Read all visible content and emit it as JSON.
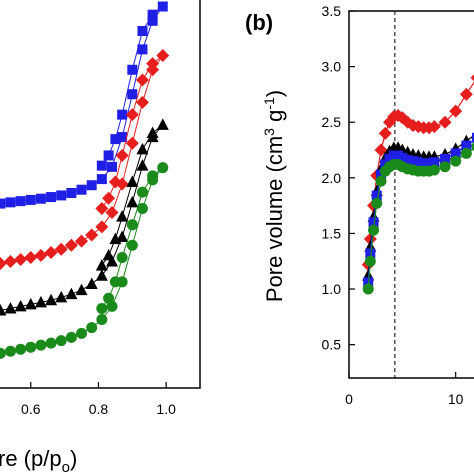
{
  "chart_data": [
    {
      "panel": "a",
      "type": "line",
      "xlabel": "re (p/p",
      "xlabel_sub": "o",
      "xlabel_close": ")",
      "xlim": [
        0.45,
        1.1
      ],
      "x_ticks": [
        "0.6",
        "0.8",
        "1.0"
      ],
      "x_tick_values": [
        0.6,
        0.8,
        1.0
      ],
      "ylim": [
        0,
        1
      ],
      "series": [
        {
          "marker": "square",
          "color": "#1f1fe6",
          "adsorption": [
            [
              0.45,
              0.446
            ],
            [
              0.48,
              0.449
            ],
            [
              0.51,
              0.452
            ],
            [
              0.54,
              0.455
            ],
            [
              0.57,
              0.458
            ],
            [
              0.6,
              0.461
            ],
            [
              0.63,
              0.464
            ],
            [
              0.66,
              0.468
            ],
            [
              0.69,
              0.472
            ],
            [
              0.72,
              0.478
            ],
            [
              0.75,
              0.486
            ],
            [
              0.78,
              0.497
            ],
            [
              0.81,
              0.512
            ],
            [
              0.84,
              0.542
            ],
            [
              0.87,
              0.615
            ],
            [
              0.9,
              0.72
            ],
            [
              0.93,
              0.83
            ],
            [
              0.96,
              0.9
            ],
            [
              0.99,
              0.935
            ]
          ],
          "desorption": [
            [
              0.99,
              0.935
            ],
            [
              0.96,
              0.915
            ],
            [
              0.93,
              0.875
            ],
            [
              0.9,
              0.78
            ],
            [
              0.87,
              0.67
            ],
            [
              0.85,
              0.61
            ],
            [
              0.83,
              0.57
            ],
            [
              0.81,
              0.545
            ]
          ]
        },
        {
          "marker": "diamond",
          "color": "#e61e1e",
          "adsorption": [
            [
              0.45,
              0.295
            ],
            [
              0.48,
              0.3
            ],
            [
              0.51,
              0.305
            ],
            [
              0.54,
              0.31
            ],
            [
              0.57,
              0.315
            ],
            [
              0.6,
              0.32
            ],
            [
              0.63,
              0.325
            ],
            [
              0.66,
              0.332
            ],
            [
              0.69,
              0.34
            ],
            [
              0.72,
              0.35
            ],
            [
              0.75,
              0.36
            ],
            [
              0.78,
              0.375
            ],
            [
              0.81,
              0.395
            ],
            [
              0.84,
              0.43
            ],
            [
              0.87,
              0.5
            ],
            [
              0.9,
              0.6
            ],
            [
              0.93,
              0.7
            ],
            [
              0.96,
              0.78
            ],
            [
              0.99,
              0.815
            ]
          ],
          "desorption": [
            [
              0.99,
              0.815
            ],
            [
              0.96,
              0.795
            ],
            [
              0.93,
              0.755
            ],
            [
              0.9,
              0.67
            ],
            [
              0.87,
              0.57
            ],
            [
              0.85,
              0.505
            ],
            [
              0.83,
              0.465
            ],
            [
              0.81,
              0.44
            ]
          ]
        },
        {
          "marker": "triangle",
          "color": "#000000",
          "adsorption": [
            [
              0.45,
              0.18
            ],
            [
              0.48,
              0.185
            ],
            [
              0.51,
              0.19
            ],
            [
              0.54,
              0.195
            ],
            [
              0.57,
              0.2
            ],
            [
              0.6,
              0.205
            ],
            [
              0.63,
              0.21
            ],
            [
              0.66,
              0.215
            ],
            [
              0.69,
              0.222
            ],
            [
              0.72,
              0.23
            ],
            [
              0.75,
              0.24
            ],
            [
              0.78,
              0.255
            ],
            [
              0.81,
              0.275
            ],
            [
              0.84,
              0.31
            ],
            [
              0.87,
              0.37
            ],
            [
              0.9,
              0.455
            ],
            [
              0.93,
              0.545
            ],
            [
              0.96,
              0.615
            ],
            [
              0.99,
              0.645
            ]
          ],
          "desorption": [
            [
              0.99,
              0.645
            ],
            [
              0.96,
              0.625
            ],
            [
              0.93,
              0.585
            ],
            [
              0.9,
              0.505
            ],
            [
              0.87,
              0.42
            ],
            [
              0.85,
              0.365
            ],
            [
              0.83,
              0.325
            ],
            [
              0.81,
              0.3
            ]
          ]
        },
        {
          "marker": "circle",
          "color": "#1a8a1a",
          "adsorption": [
            [
              0.45,
              0.075
            ],
            [
              0.48,
              0.08
            ],
            [
              0.51,
              0.085
            ],
            [
              0.54,
              0.09
            ],
            [
              0.57,
              0.095
            ],
            [
              0.6,
              0.1
            ],
            [
              0.63,
              0.105
            ],
            [
              0.66,
              0.11
            ],
            [
              0.69,
              0.116
            ],
            [
              0.72,
              0.124
            ],
            [
              0.75,
              0.134
            ],
            [
              0.78,
              0.148
            ],
            [
              0.81,
              0.168
            ],
            [
              0.84,
              0.2
            ],
            [
              0.87,
              0.26
            ],
            [
              0.9,
              0.35
            ],
            [
              0.93,
              0.44
            ],
            [
              0.96,
              0.51
            ],
            [
              0.99,
              0.54
            ]
          ],
          "desorption": [
            [
              0.99,
              0.54
            ],
            [
              0.96,
              0.52
            ],
            [
              0.93,
              0.48
            ],
            [
              0.9,
              0.4
            ],
            [
              0.87,
              0.32
            ],
            [
              0.85,
              0.26
            ],
            [
              0.83,
              0.22
            ],
            [
              0.81,
              0.195
            ]
          ]
        }
      ]
    },
    {
      "panel": "b",
      "type": "line",
      "panel_label": "(b)",
      "ylabel": "Pore volume (cm",
      "ylabel_sup1": "3",
      "ylabel_mid": " g",
      "ylabel_sup2": "-1",
      "ylabel_close": ")",
      "xlim": [
        0,
        15
      ],
      "ylim": [
        0.2,
        3.5
      ],
      "x_ticks": [
        "0",
        "10"
      ],
      "x_tick_values": [
        0,
        10
      ],
      "y_ticks": [
        "0.5",
        "1.0",
        "1.5",
        "2.0",
        "2.5",
        "3.0",
        "3.5"
      ],
      "y_tick_values": [
        0.5,
        1.0,
        1.5,
        2.0,
        2.5,
        3.0,
        3.5
      ],
      "dashed_line_x": 4.3,
      "series": [
        {
          "marker": "diamond",
          "color": "#e61e1e",
          "points": [
            [
              1.8,
              1.22
            ],
            [
              2.0,
              1.45
            ],
            [
              2.3,
              1.75
            ],
            [
              2.6,
              2.02
            ],
            [
              3.0,
              2.25
            ],
            [
              3.4,
              2.4
            ],
            [
              3.8,
              2.5
            ],
            [
              4.2,
              2.55
            ],
            [
              4.6,
              2.56
            ],
            [
              5.0,
              2.54
            ],
            [
              5.5,
              2.5
            ],
            [
              6.0,
              2.47
            ],
            [
              6.5,
              2.46
            ],
            [
              7.0,
              2.45
            ],
            [
              7.5,
              2.45
            ],
            [
              8.0,
              2.46
            ],
            [
              9.0,
              2.5
            ],
            [
              10.0,
              2.6
            ],
            [
              11.0,
              2.75
            ],
            [
              12.0,
              2.9
            ],
            [
              13.0,
              3.02
            ]
          ]
        },
        {
          "marker": "triangle",
          "color": "#000000",
          "points": [
            [
              1.8,
              1.12
            ],
            [
              2.0,
              1.38
            ],
            [
              2.3,
              1.65
            ],
            [
              2.6,
              1.88
            ],
            [
              3.0,
              2.08
            ],
            [
              3.4,
              2.18
            ],
            [
              3.8,
              2.24
            ],
            [
              4.2,
              2.27
            ],
            [
              4.6,
              2.27
            ],
            [
              5.0,
              2.25
            ],
            [
              5.5,
              2.23
            ],
            [
              6.0,
              2.21
            ],
            [
              6.5,
              2.2
            ],
            [
              7.0,
              2.19
            ],
            [
              7.5,
              2.19
            ],
            [
              8.0,
              2.19
            ],
            [
              9.0,
              2.21
            ],
            [
              10.0,
              2.26
            ],
            [
              11.0,
              2.33
            ],
            [
              12.0,
              2.4
            ],
            [
              13.0,
              2.46
            ]
          ]
        },
        {
          "marker": "square",
          "color": "#1f1fe6",
          "points": [
            [
              1.8,
              1.06
            ],
            [
              2.0,
              1.32
            ],
            [
              2.3,
              1.6
            ],
            [
              2.6,
              1.84
            ],
            [
              3.0,
              2.03
            ],
            [
              3.4,
              2.12
            ],
            [
              3.8,
              2.17
            ],
            [
              4.2,
              2.2
            ],
            [
              4.6,
              2.2
            ],
            [
              5.0,
              2.18
            ],
            [
              5.5,
              2.16
            ],
            [
              6.0,
              2.15
            ],
            [
              6.5,
              2.14
            ],
            [
              7.0,
              2.13
            ],
            [
              7.5,
              2.13
            ],
            [
              8.0,
              2.14
            ],
            [
              9.0,
              2.17
            ],
            [
              10.0,
              2.22
            ],
            [
              11.0,
              2.29
            ],
            [
              12.0,
              2.36
            ],
            [
              13.0,
              2.42
            ]
          ]
        },
        {
          "marker": "circle",
          "color": "#1a8a1a",
          "points": [
            [
              1.8,
              1.0
            ],
            [
              2.0,
              1.25
            ],
            [
              2.3,
              1.53
            ],
            [
              2.6,
              1.77
            ],
            [
              3.0,
              1.97
            ],
            [
              3.4,
              2.06
            ],
            [
              3.8,
              2.1
            ],
            [
              4.2,
              2.12
            ],
            [
              4.6,
              2.12
            ],
            [
              5.0,
              2.1
            ],
            [
              5.5,
              2.08
            ],
            [
              6.0,
              2.07
            ],
            [
              6.5,
              2.06
            ],
            [
              7.0,
              2.06
            ],
            [
              7.5,
              2.06
            ],
            [
              8.0,
              2.07
            ],
            [
              9.0,
              2.1
            ],
            [
              10.0,
              2.15
            ],
            [
              11.0,
              2.22
            ],
            [
              12.0,
              2.28
            ],
            [
              13.0,
              2.34
            ]
          ]
        }
      ]
    }
  ]
}
